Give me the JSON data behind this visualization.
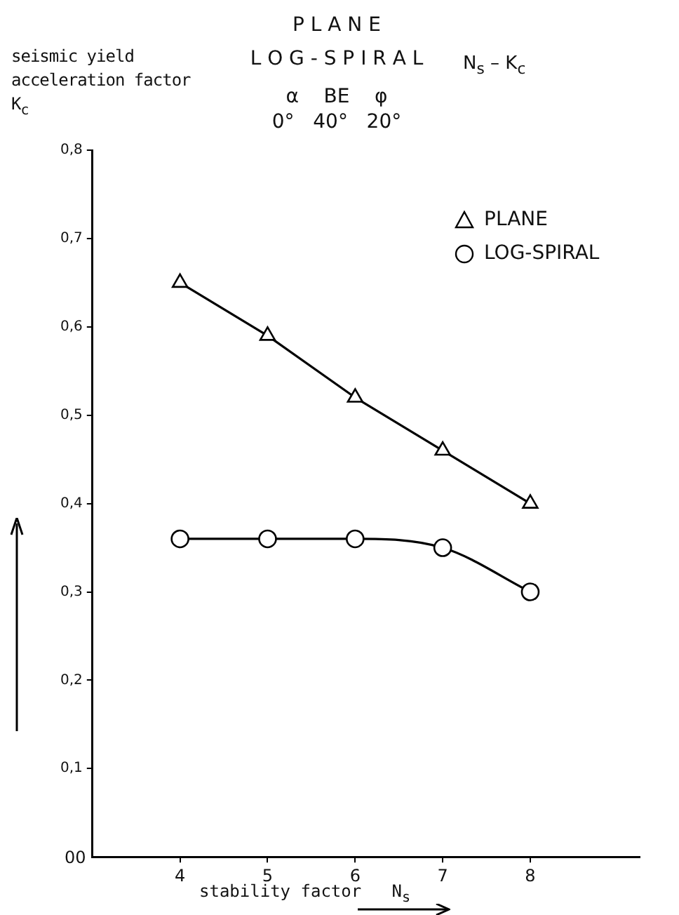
{
  "chart_data": {
    "type": "line",
    "title": "P L A N E\nL O G - S P I R A L",
    "subtitle": "α    BE    φ\n0°   40°   20°",
    "ylabel": "seismic yield\nacceleration factor\nK$_{c}$",
    "xlabel": "stability factor   N$_{s}$",
    "annotations": [
      "N$_{s}$ – K$_{c}$",
      "00"
    ],
    "x": [
      4,
      5,
      6,
      7,
      8
    ],
    "series": [
      {
        "name": "PLANE",
        "color": "#000000",
        "values": [
          0.65,
          0.59,
          0.52,
          0.46,
          0.4
        ],
        "marker": "triangle"
      },
      {
        "name": "LOG-SPIRAL",
        "color": "#000000",
        "values": [
          0.36,
          0.36,
          0.36,
          0.35,
          0.3
        ],
        "marker": "circle"
      }
    ],
    "xlim": [
      3,
      9.25
    ],
    "xticks": [
      4,
      5,
      6,
      7,
      8
    ],
    "ylim": [
      0,
      0.8
    ],
    "yticks": [
      {
        "value": 0.1,
        "label": "0,1"
      },
      {
        "value": 0.2,
        "label": "0,2"
      },
      {
        "value": 0.3,
        "label": "0,3"
      },
      {
        "value": 0.4,
        "label": "0,4"
      },
      {
        "value": 0.5,
        "label": "0,5"
      },
      {
        "value": 0.6,
        "label": "0,6"
      },
      {
        "value": 0.7,
        "label": "0,7"
      },
      {
        "value": 0.8,
        "label": "0,8"
      }
    ],
    "grid": false,
    "legend": "top right",
    "line_style": "solid"
  }
}
